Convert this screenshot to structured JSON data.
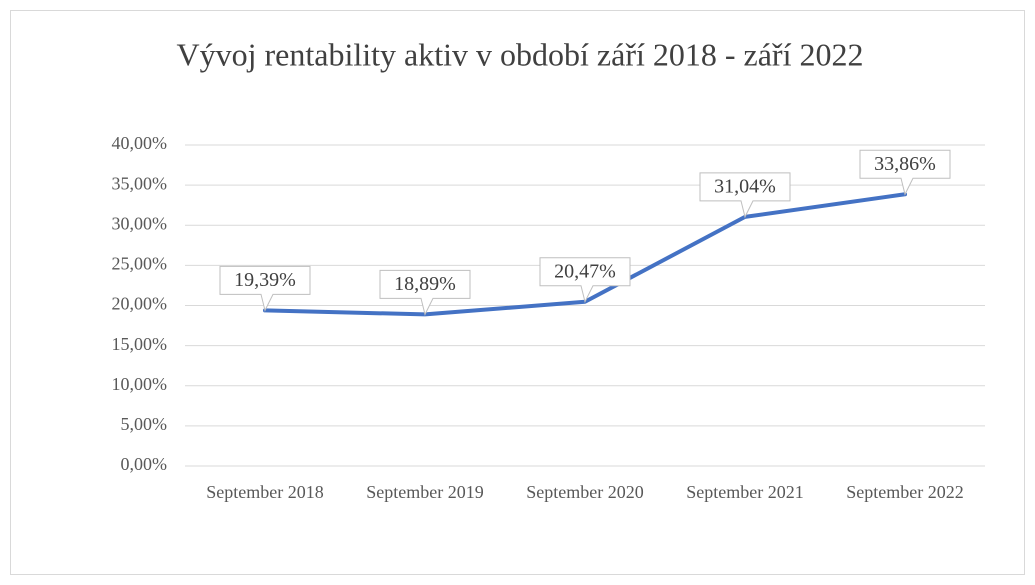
{
  "chart_data": {
    "type": "line",
    "title": "Vývoj rentability aktiv v období září 2018 - září 2022",
    "categories": [
      "September 2018",
      "September 2019",
      "September 2020",
      "September 2021",
      "September 2022"
    ],
    "values": [
      19.39,
      18.89,
      20.47,
      31.04,
      33.86
    ],
    "value_labels": [
      "19,39%",
      "18,89%",
      "20,47%",
      "31,04%",
      "33,86%"
    ],
    "color": "#4472c4",
    "ylim": [
      0,
      40
    ],
    "yticks": [
      {
        "value": 0,
        "label": "0,00%"
      },
      {
        "value": 5,
        "label": "5,00%"
      },
      {
        "value": 10,
        "label": "10,00%"
      },
      {
        "value": 15,
        "label": "15,00%"
      },
      {
        "value": 20,
        "label": "20,00%"
      },
      {
        "value": 25,
        "label": "25,00%"
      },
      {
        "value": 30,
        "label": "30,00%"
      },
      {
        "value": 35,
        "label": "35,00%"
      },
      {
        "value": 40,
        "label": "40,00%"
      }
    ],
    "grid": true
  }
}
